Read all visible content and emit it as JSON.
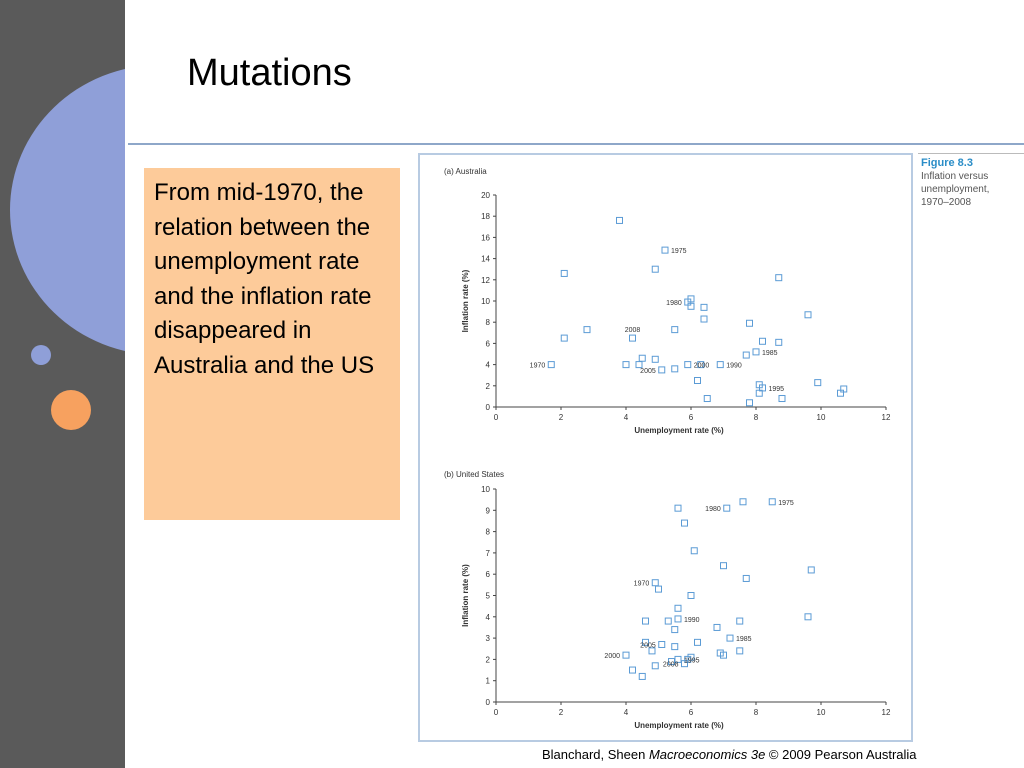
{
  "slide": {
    "title": "Mutations",
    "body_text": "From mid-1970, the relation between the unemployment rate and the inflation rate disappeared in Australia and the US",
    "footer_prefix": "Blanchard, Sheen ",
    "footer_italic": "Macroeconomics 3e",
    "footer_suffix": " © 2009 Pearson Australia"
  },
  "figure": {
    "number": "Figure 8.3",
    "caption": "Inflation versus unemployment, 1970–2008"
  },
  "colors": {
    "sidebar": "#5a5a5a",
    "accent_blue": "#8f9fd8",
    "accent_orange": "#f7a15f",
    "text_box": "#fdcb9a",
    "marker": "#5b9bd5"
  },
  "chart_data": [
    {
      "type": "scatter",
      "title": "(a) Australia",
      "xlabel": "Unemployment rate (%)",
      "ylabel": "Inflation rate (%)",
      "xlim": [
        0,
        12
      ],
      "ylim": [
        0,
        20
      ],
      "xticks": [
        0,
        2,
        4,
        6,
        8,
        10,
        12
      ],
      "yticks": [
        0,
        2,
        4,
        6,
        8,
        10,
        12,
        14,
        16,
        18,
        20
      ],
      "points": [
        [
          1.7,
          4.0
        ],
        [
          2.1,
          12.6
        ],
        [
          2.1,
          6.5
        ],
        [
          2.8,
          7.3
        ],
        [
          3.8,
          17.6
        ],
        [
          4.0,
          4.0
        ],
        [
          4.2,
          6.5
        ],
        [
          4.4,
          4.0
        ],
        [
          4.5,
          4.6
        ],
        [
          4.9,
          13.0
        ],
        [
          4.9,
          4.5
        ],
        [
          5.1,
          3.5
        ],
        [
          5.2,
          14.8
        ],
        [
          5.5,
          3.6
        ],
        [
          5.5,
          7.3
        ],
        [
          5.9,
          9.9
        ],
        [
          5.9,
          4.0
        ],
        [
          6.0,
          10.2
        ],
        [
          6.0,
          9.5
        ],
        [
          6.2,
          2.5
        ],
        [
          6.3,
          4.0
        ],
        [
          6.4,
          8.3
        ],
        [
          6.4,
          9.4
        ],
        [
          6.5,
          0.8
        ],
        [
          6.9,
          4.0
        ],
        [
          7.7,
          4.9
        ],
        [
          7.8,
          0.4
        ],
        [
          7.8,
          7.9
        ],
        [
          8.0,
          5.2
        ],
        [
          8.1,
          1.3
        ],
        [
          8.1,
          2.1
        ],
        [
          8.2,
          1.8
        ],
        [
          8.2,
          6.2
        ],
        [
          8.7,
          6.1
        ],
        [
          8.7,
          12.2
        ],
        [
          8.8,
          0.8
        ],
        [
          9.6,
          8.7
        ],
        [
          9.9,
          2.3
        ],
        [
          10.6,
          1.3
        ],
        [
          10.7,
          1.7
        ]
      ],
      "annotations": [
        {
          "label": "1975",
          "x": 5.2,
          "y": 14.8
        },
        {
          "label": "1980",
          "x": 5.9,
          "y": 9.9
        },
        {
          "label": "2008",
          "x": 4.2,
          "y": 6.5
        },
        {
          "label": "1970",
          "x": 1.7,
          "y": 4.0
        },
        {
          "label": "2000",
          "x": 5.9,
          "y": 4.0
        },
        {
          "label": "2005",
          "x": 5.1,
          "y": 3.5
        },
        {
          "label": "1990",
          "x": 6.9,
          "y": 4.0
        },
        {
          "label": "1985",
          "x": 8.0,
          "y": 5.2
        },
        {
          "label": "1995",
          "x": 8.2,
          "y": 1.8
        }
      ]
    },
    {
      "type": "scatter",
      "title": "(b) United States",
      "xlabel": "Unemployment rate (%)",
      "ylabel": "Inflation rate (%)",
      "xlim": [
        0,
        12
      ],
      "ylim": [
        0,
        10
      ],
      "xticks": [
        0,
        2,
        4,
        6,
        8,
        10,
        12
      ],
      "yticks": [
        0,
        1,
        2,
        3,
        4,
        5,
        6,
        7,
        8,
        9,
        10
      ],
      "points": [
        [
          4.0,
          2.2
        ],
        [
          4.2,
          1.5
        ],
        [
          4.5,
          1.2
        ],
        [
          4.6,
          3.8
        ],
        [
          4.6,
          2.8
        ],
        [
          4.8,
          2.4
        ],
        [
          4.9,
          1.7
        ],
        [
          4.9,
          5.6
        ],
        [
          5.0,
          5.3
        ],
        [
          5.1,
          2.7
        ],
        [
          5.3,
          3.8
        ],
        [
          5.4,
          1.9
        ],
        [
          5.5,
          2.6
        ],
        [
          5.5,
          3.4
        ],
        [
          5.6,
          2.0
        ],
        [
          5.6,
          4.4
        ],
        [
          5.6,
          9.1
        ],
        [
          5.6,
          3.9
        ],
        [
          5.8,
          1.8
        ],
        [
          5.8,
          8.4
        ],
        [
          5.9,
          2.0
        ],
        [
          6.0,
          5.0
        ],
        [
          6.0,
          2.1
        ],
        [
          6.1,
          7.1
        ],
        [
          6.2,
          2.8
        ],
        [
          6.8,
          3.5
        ],
        [
          6.9,
          2.3
        ],
        [
          7.0,
          2.2
        ],
        [
          7.0,
          6.4
        ],
        [
          7.1,
          9.1
        ],
        [
          7.2,
          3.0
        ],
        [
          7.5,
          2.4
        ],
        [
          7.5,
          3.8
        ],
        [
          7.6,
          9.4
        ],
        [
          7.7,
          5.8
        ],
        [
          8.5,
          9.4
        ],
        [
          9.6,
          4.0
        ],
        [
          9.7,
          6.2
        ]
      ],
      "annotations": [
        {
          "label": "1975",
          "x": 8.5,
          "y": 9.4
        },
        {
          "label": "1980",
          "x": 7.1,
          "y": 9.1
        },
        {
          "label": "1970",
          "x": 4.9,
          "y": 5.6
        },
        {
          "label": "1990",
          "x": 5.6,
          "y": 3.9
        },
        {
          "label": "1985",
          "x": 7.2,
          "y": 3.0
        },
        {
          "label": "2005",
          "x": 5.1,
          "y": 2.7
        },
        {
          "label": "1995",
          "x": 5.6,
          "y": 2.0
        },
        {
          "label": "2000",
          "x": 4.0,
          "y": 2.2
        },
        {
          "label": "2008",
          "x": 5.8,
          "y": 1.8
        }
      ]
    }
  ]
}
